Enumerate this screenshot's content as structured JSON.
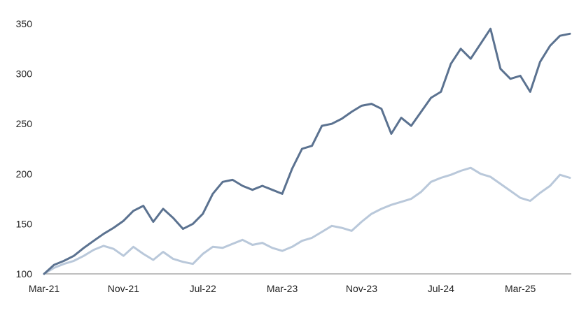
{
  "chart_data": {
    "type": "line",
    "title": "",
    "xlabel": "",
    "ylabel": "",
    "ylim": [
      100,
      350
    ],
    "xlim": [
      "2021-03",
      "2025-08"
    ],
    "grid": false,
    "legend": "none",
    "y_ticks": [
      100,
      150,
      200,
      250,
      300,
      350
    ],
    "x_ticks": [
      "Mar-21",
      "Nov-21",
      "Jul-22",
      "Mar-23",
      "Nov-23",
      "Jul-24",
      "Mar-25"
    ],
    "series": [
      {
        "color": "#5b7290",
        "points": [
          [
            "2021-03",
            100
          ],
          [
            "2021-04",
            109
          ],
          [
            "2021-05",
            113
          ],
          [
            "2021-06",
            118
          ],
          [
            "2021-07",
            126
          ],
          [
            "2021-08",
            133
          ],
          [
            "2021-09",
            140
          ],
          [
            "2021-10",
            146
          ],
          [
            "2021-11",
            153
          ],
          [
            "2021-12",
            163
          ],
          [
            "2022-01",
            168
          ],
          [
            "2022-02",
            152
          ],
          [
            "2022-03",
            165
          ],
          [
            "2022-04",
            156
          ],
          [
            "2022-05",
            145
          ],
          [
            "2022-06",
            150
          ],
          [
            "2022-07",
            160
          ],
          [
            "2022-08",
            180
          ],
          [
            "2022-09",
            192
          ],
          [
            "2022-10",
            194
          ],
          [
            "2022-11",
            188
          ],
          [
            "2022-12",
            184
          ],
          [
            "2023-01",
            188
          ],
          [
            "2023-02",
            184
          ],
          [
            "2023-03",
            180
          ],
          [
            "2023-04",
            205
          ],
          [
            "2023-05",
            225
          ],
          [
            "2023-06",
            228
          ],
          [
            "2023-07",
            248
          ],
          [
            "2023-08",
            250
          ],
          [
            "2023-09",
            255
          ],
          [
            "2023-10",
            262
          ],
          [
            "2023-11",
            268
          ],
          [
            "2023-12",
            270
          ],
          [
            "2024-01",
            265
          ],
          [
            "2024-02",
            240
          ],
          [
            "2024-03",
            256
          ],
          [
            "2024-04",
            248
          ],
          [
            "2024-05",
            262
          ],
          [
            "2024-06",
            276
          ],
          [
            "2024-07",
            282
          ],
          [
            "2024-08",
            310
          ],
          [
            "2024-09",
            325
          ],
          [
            "2024-10",
            315
          ],
          [
            "2024-11",
            330
          ],
          [
            "2024-12",
            345
          ],
          [
            "2025-01",
            305
          ],
          [
            "2025-02",
            295
          ],
          [
            "2025-03",
            298
          ],
          [
            "2025-04",
            282
          ],
          [
            "2025-05",
            312
          ],
          [
            "2025-06",
            328
          ],
          [
            "2025-07",
            338
          ],
          [
            "2025-08",
            340
          ]
        ]
      },
      {
        "color": "#b9c8da",
        "points": [
          [
            "2021-03",
            100
          ],
          [
            "2021-04",
            106
          ],
          [
            "2021-05",
            110
          ],
          [
            "2021-06",
            113
          ],
          [
            "2021-07",
            118
          ],
          [
            "2021-08",
            124
          ],
          [
            "2021-09",
            128
          ],
          [
            "2021-10",
            125
          ],
          [
            "2021-11",
            118
          ],
          [
            "2021-12",
            127
          ],
          [
            "2022-01",
            120
          ],
          [
            "2022-02",
            114
          ],
          [
            "2022-03",
            122
          ],
          [
            "2022-04",
            115
          ],
          [
            "2022-05",
            112
          ],
          [
            "2022-06",
            110
          ],
          [
            "2022-07",
            120
          ],
          [
            "2022-08",
            127
          ],
          [
            "2022-09",
            126
          ],
          [
            "2022-10",
            130
          ],
          [
            "2022-11",
            134
          ],
          [
            "2022-12",
            129
          ],
          [
            "2023-01",
            131
          ],
          [
            "2023-02",
            126
          ],
          [
            "2023-03",
            123
          ],
          [
            "2023-04",
            127
          ],
          [
            "2023-05",
            133
          ],
          [
            "2023-06",
            136
          ],
          [
            "2023-07",
            142
          ],
          [
            "2023-08",
            148
          ],
          [
            "2023-09",
            146
          ],
          [
            "2023-10",
            143
          ],
          [
            "2023-11",
            152
          ],
          [
            "2023-12",
            160
          ],
          [
            "2024-01",
            165
          ],
          [
            "2024-02",
            169
          ],
          [
            "2024-03",
            172
          ],
          [
            "2024-04",
            175
          ],
          [
            "2024-05",
            182
          ],
          [
            "2024-06",
            192
          ],
          [
            "2024-07",
            196
          ],
          [
            "2024-08",
            199
          ],
          [
            "2024-09",
            203
          ],
          [
            "2024-10",
            206
          ],
          [
            "2024-11",
            200
          ],
          [
            "2024-12",
            197
          ],
          [
            "2025-01",
            190
          ],
          [
            "2025-02",
            183
          ],
          [
            "2025-03",
            176
          ],
          [
            "2025-04",
            173
          ],
          [
            "2025-05",
            181
          ],
          [
            "2025-06",
            188
          ],
          [
            "2025-07",
            199
          ],
          [
            "2025-08",
            196
          ]
        ]
      }
    ]
  }
}
